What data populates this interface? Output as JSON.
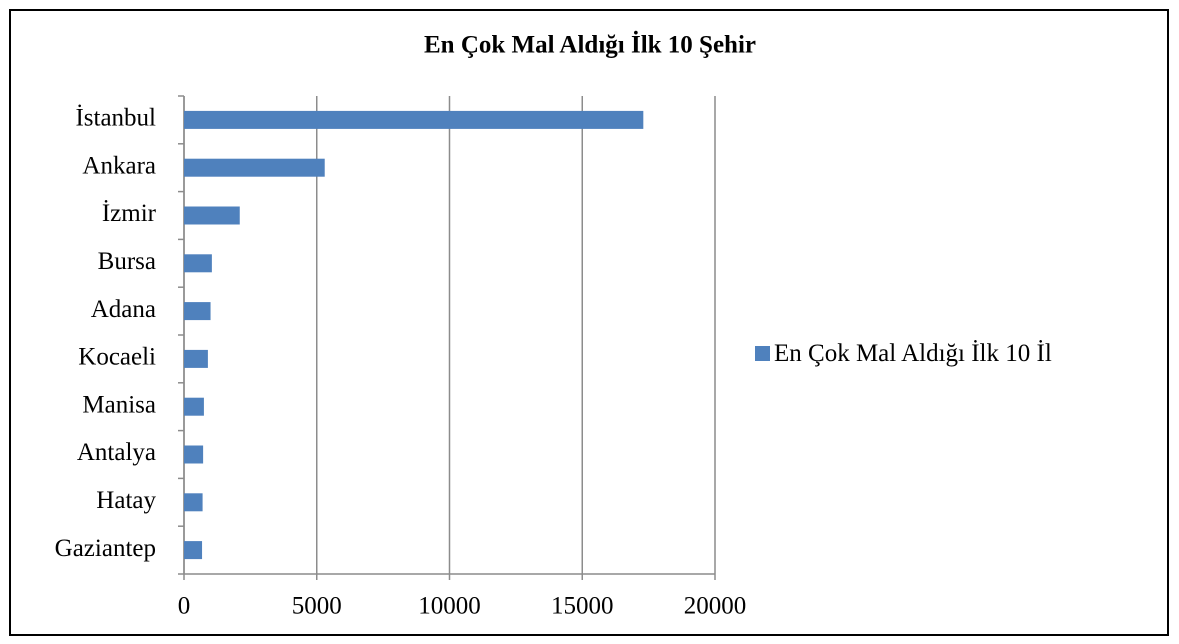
{
  "chart_data": {
    "type": "bar",
    "orientation": "horizontal",
    "title": "En Çok Mal Aldığı İlk 10 Şehir",
    "categories": [
      "İstanbul",
      "Ankara",
      "İzmir",
      "Bursa",
      "Adana",
      "Kocaeli",
      "Manisa",
      "Antalya",
      "Hatay",
      "Gaziantep"
    ],
    "series": [
      {
        "name": "En Çok Mal Aldığı İlk 10 İl",
        "color": "#4f81bd",
        "values": [
          17300,
          5300,
          2100,
          1050,
          1000,
          900,
          750,
          720,
          700,
          680
        ]
      }
    ],
    "xlim": [
      0,
      20000
    ],
    "xticks": [
      0,
      5000,
      10000,
      15000,
      20000
    ],
    "grid": true,
    "legend": "right"
  }
}
